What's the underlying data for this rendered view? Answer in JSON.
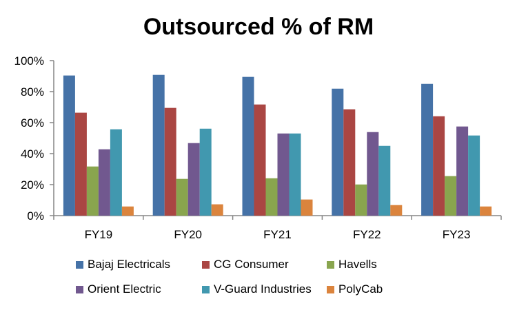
{
  "chart_data": {
    "type": "bar",
    "title": "Outsourced % of RM",
    "xlabel": "",
    "ylabel": "",
    "ylim": [
      0,
      100
    ],
    "yticks": [
      "0%",
      "20%",
      "40%",
      "60%",
      "80%",
      "100%"
    ],
    "ytick_values": [
      0,
      20,
      40,
      60,
      80,
      100
    ],
    "grid": false,
    "legend_position": "bottom",
    "categories": [
      "FY19",
      "FY20",
      "FY21",
      "FY22",
      "FY23"
    ],
    "series": [
      {
        "name": "Bajaj Electricals",
        "color": "#4572A7",
        "values": [
          90.4,
          90.8,
          89.5,
          81.9,
          85.0
        ]
      },
      {
        "name": "CG Consumer",
        "color": "#AA4643",
        "values": [
          66.4,
          69.5,
          71.7,
          68.6,
          64.1
        ]
      },
      {
        "name": "Havells",
        "color": "#89A54E",
        "values": [
          31.7,
          23.7,
          24.1,
          20.1,
          25.5
        ]
      },
      {
        "name": "Orient Electric",
        "color": "#71588F",
        "values": [
          42.8,
          46.8,
          53.0,
          53.9,
          57.5
        ]
      },
      {
        "name": "V-Guard Industries",
        "color": "#4198AF",
        "values": [
          55.7,
          56.1,
          53.0,
          45.0,
          51.7
        ]
      },
      {
        "name": "PolyCab",
        "color": "#DB843D",
        "values": [
          5.9,
          7.3,
          10.4,
          6.8,
          5.9
        ]
      }
    ]
  }
}
